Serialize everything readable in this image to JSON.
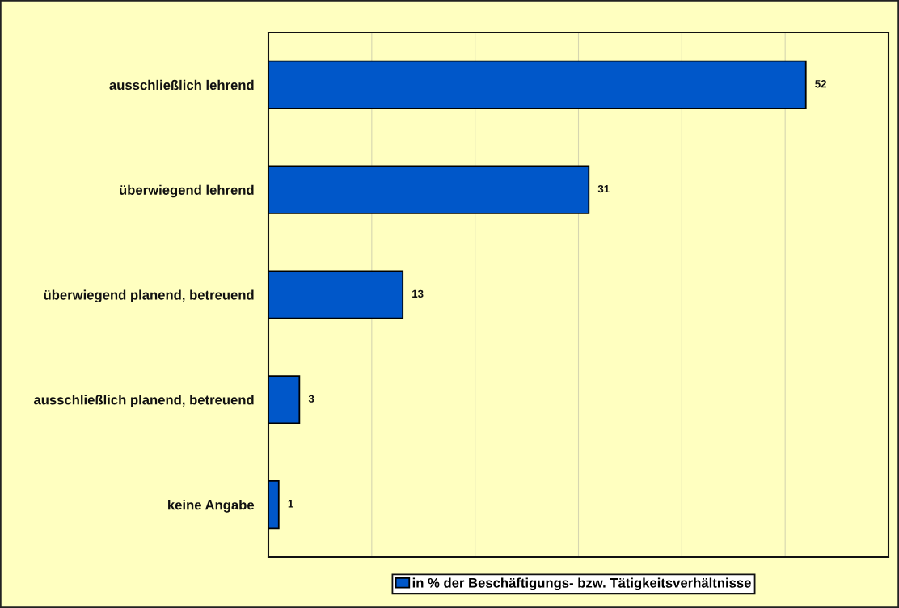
{
  "chart_data": {
    "type": "bar",
    "orientation": "horizontal",
    "categories": [
      "ausschließlich lehrend",
      "überwiegend lehrend",
      "überwiegend planend, betreuend",
      "ausschließlich planend, betreuend",
      "keine Angabe"
    ],
    "series": [
      {
        "name": "in % der Beschäftigungs- bzw. Tätigkeitsverhältnisse",
        "color": "#0057c9",
        "values": [
          52,
          31,
          13,
          3,
          1
        ]
      }
    ],
    "xlim": [
      0,
      60
    ],
    "xticks": [
      {
        "value": 0,
        "label": null
      },
      {
        "value": 10,
        "label": null
      },
      {
        "value": 20,
        "label": null
      },
      {
        "value": 30,
        "label": null
      },
      {
        "value": 40,
        "label": null
      },
      {
        "value": 50,
        "label": null
      },
      {
        "value": 60,
        "label": null
      }
    ],
    "grid": "x",
    "legend": "bottom",
    "tick_labels": "y",
    "data_labels": true
  }
}
